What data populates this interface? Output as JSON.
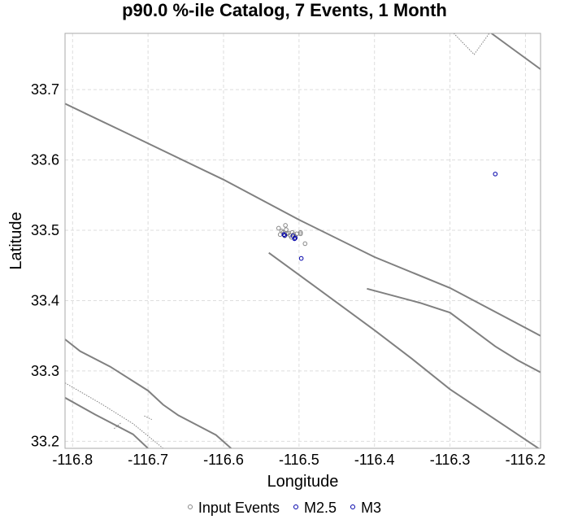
{
  "chart_data": {
    "type": "scatter",
    "title": "p90.0 %-ile Catalog, 7 Events, 1 Month",
    "xlabel": "Longitude",
    "ylabel": "Latitude",
    "xlim": [
      -116.81,
      -116.18
    ],
    "ylim": [
      33.19,
      33.78
    ],
    "xticks": [
      -116.8,
      -116.7,
      -116.6,
      -116.5,
      -116.4,
      -116.3,
      -116.2
    ],
    "yticks": [
      33.2,
      33.3,
      33.4,
      33.5,
      33.6,
      33.7
    ],
    "xtick_labels": [
      "-116.8",
      "-116.7",
      "-116.6",
      "-116.5",
      "-116.4",
      "-116.3",
      "-116.2"
    ],
    "ytick_labels": [
      "33.2",
      "33.3",
      "33.4",
      "33.5",
      "33.6",
      "33.7"
    ],
    "grid": true,
    "legend_placement": "bottom-center",
    "colors": {
      "input": "#888888",
      "m25": "#0000aa",
      "m3": "#0000aa",
      "fault": "#808080"
    },
    "series": [
      {
        "name": "Input Events",
        "points": [
          [
            -116.527,
            33.503
          ],
          [
            -116.523,
            33.499
          ],
          [
            -116.521,
            33.497
          ],
          [
            -116.518,
            33.507
          ],
          [
            -116.517,
            33.501
          ],
          [
            -116.516,
            33.495
          ],
          [
            -116.514,
            33.496
          ],
          [
            -116.512,
            33.493
          ],
          [
            -116.509,
            33.497
          ],
          [
            -116.507,
            33.494
          ],
          [
            -116.505,
            33.491
          ],
          [
            -116.503,
            33.495
          ],
          [
            -116.498,
            33.497
          ],
          [
            -116.498,
            33.495
          ],
          [
            -116.492,
            33.481
          ],
          [
            -116.525,
            33.494
          ],
          [
            -116.519,
            33.492
          ],
          [
            -116.51,
            33.49
          ]
        ]
      },
      {
        "name": "M2.5",
        "points": [
          [
            -116.52,
            33.494
          ],
          [
            -116.508,
            33.492
          ],
          [
            -116.506,
            33.488
          ],
          [
            -116.497,
            33.46
          ],
          [
            -116.24,
            33.58
          ]
        ]
      },
      {
        "name": "M3",
        "points": [
          [
            -116.519,
            33.493
          ],
          [
            -116.505,
            33.489
          ]
        ]
      }
    ],
    "faults": [
      {
        "style": "solid",
        "points": [
          [
            -116.81,
            33.68
          ],
          [
            -116.73,
            33.639
          ],
          [
            -116.6,
            33.572
          ],
          [
            -116.5,
            33.515
          ],
          [
            -116.4,
            33.462
          ],
          [
            -116.3,
            33.418
          ],
          [
            -116.18,
            33.35
          ]
        ]
      },
      {
        "style": "solid",
        "points": [
          [
            -116.54,
            33.468
          ],
          [
            -116.48,
            33.421
          ],
          [
            -116.4,
            33.358
          ],
          [
            -116.35,
            33.317
          ],
          [
            -116.3,
            33.274
          ],
          [
            -116.18,
            33.188
          ]
        ]
      },
      {
        "style": "solid",
        "points": [
          [
            -116.41,
            33.417
          ],
          [
            -116.34,
            33.397
          ],
          [
            -116.3,
            33.383
          ],
          [
            -116.24,
            33.335
          ],
          [
            -116.21,
            33.315
          ],
          [
            -116.18,
            33.298
          ]
        ]
      },
      {
        "style": "solid",
        "points": [
          [
            -116.81,
            33.345
          ],
          [
            -116.79,
            33.328
          ],
          [
            -116.75,
            33.306
          ],
          [
            -116.7,
            33.272
          ],
          [
            -116.68,
            33.252
          ],
          [
            -116.66,
            33.237
          ],
          [
            -116.61,
            33.209
          ],
          [
            -116.59,
            33.19
          ]
        ]
      },
      {
        "style": "solid",
        "points": [
          [
            -116.81,
            33.262
          ],
          [
            -116.77,
            33.238
          ],
          [
            -116.72,
            33.21
          ],
          [
            -116.7,
            33.19
          ]
        ]
      },
      {
        "style": "dotted",
        "points": [
          [
            -116.81,
            33.283
          ],
          [
            -116.76,
            33.252
          ],
          [
            -116.72,
            33.225
          ],
          [
            -116.68,
            33.19
          ]
        ]
      },
      {
        "style": "dotted",
        "points": [
          [
            -116.745,
            33.218
          ],
          [
            -116.735,
            33.227
          ]
        ]
      },
      {
        "style": "dotted",
        "points": [
          [
            -116.705,
            33.236
          ],
          [
            -116.695,
            33.231
          ]
        ]
      },
      {
        "style": "dotted",
        "points": [
          [
            -116.295,
            33.78
          ],
          [
            -116.268,
            33.75
          ],
          [
            -116.248,
            33.78
          ]
        ]
      },
      {
        "style": "solid",
        "points": [
          [
            -116.245,
            33.78
          ],
          [
            -116.18,
            33.729
          ]
        ]
      }
    ]
  },
  "legend": {
    "input_label": "Input Events",
    "m25_label": "M2.5",
    "m3_label": "M3"
  }
}
